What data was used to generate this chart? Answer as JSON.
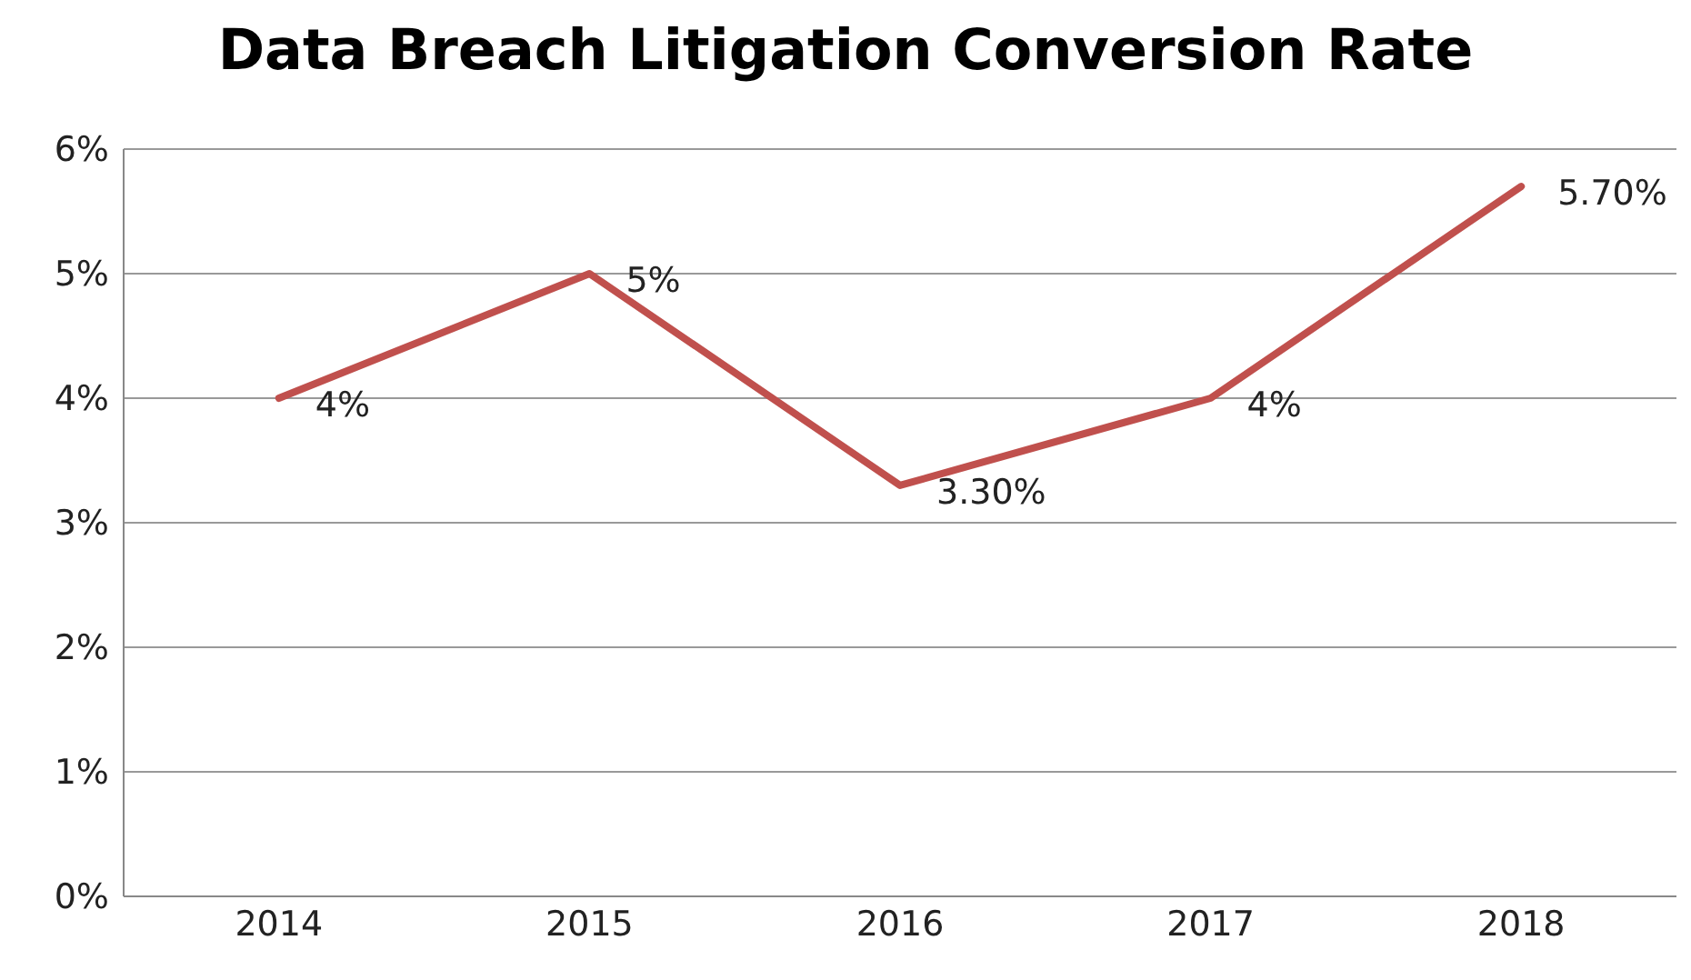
{
  "chart_data": {
    "type": "line",
    "title": "Data Breach Litigation Conversion Rate",
    "categories": [
      "2014",
      "2015",
      "2016",
      "2017",
      "2018"
    ],
    "series": [
      {
        "color": "#c0504d",
        "values": [
          4,
          5,
          3.3,
          4,
          5.7
        ],
        "value_labels": [
          "4%",
          "5%",
          "3.30%",
          "4%",
          "5.70%"
        ]
      }
    ],
    "ylim": [
      0,
      6
    ],
    "yticks": [
      {
        "value": 0,
        "label": "0%"
      },
      {
        "value": 1,
        "label": "1%"
      },
      {
        "value": 2,
        "label": "2%"
      },
      {
        "value": 3,
        "label": "3%"
      },
      {
        "value": 4,
        "label": "4%"
      },
      {
        "value": 5,
        "label": "5%"
      },
      {
        "value": 6,
        "label": "6%"
      }
    ],
    "grid": "y",
    "legend": false,
    "marker": "none",
    "line_style": "solid"
  }
}
